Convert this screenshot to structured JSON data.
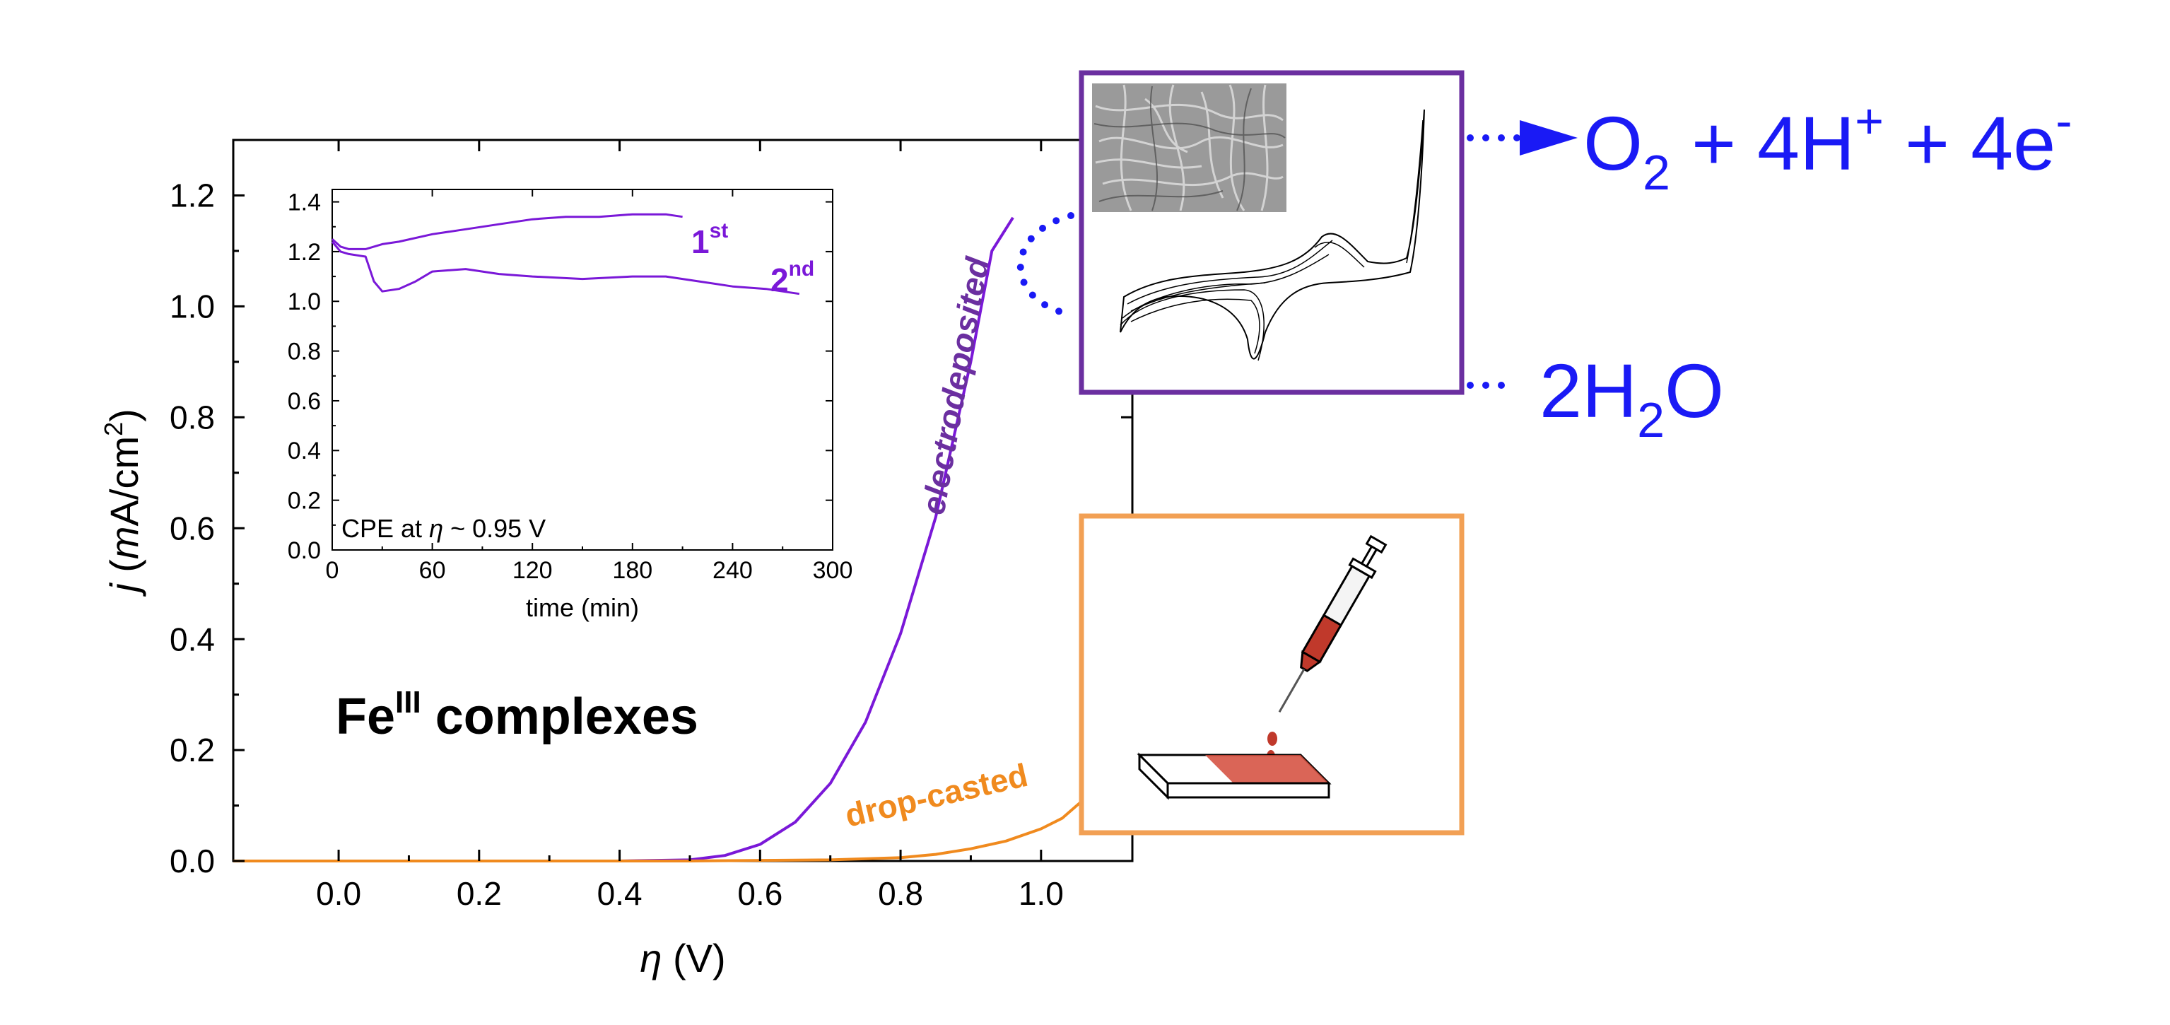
{
  "chart_data": [
    {
      "type": "line",
      "xlabel_symbol": "η",
      "xlabel_unit": " (V)",
      "ylabel_symbol": "j",
      "ylabel_unit_pre": " (",
      "ylabel_unit_m": "m",
      "ylabel_unit_rest": "A/cm",
      "ylabel_unit_sup": "2",
      "ylabel_unit_post": ")",
      "xlim": [
        -0.15,
        1.13
      ],
      "ylim": [
        0.0,
        1.3
      ],
      "xticks": [
        0.0,
        0.2,
        0.4,
        0.6,
        0.8,
        1.0
      ],
      "xtick_labels": [
        "0.0",
        "0.2",
        "0.4",
        "0.6",
        "0.8",
        "1.0"
      ],
      "yticks": [
        0.0,
        0.2,
        0.4,
        0.6,
        0.8,
        1.0,
        1.2
      ],
      "ytick_labels": [
        "0.0",
        "0.2",
        "0.4",
        "0.6",
        "0.8",
        "1.0",
        "1.2"
      ],
      "series": [
        {
          "name": "electrodeposited",
          "color": "#7a18d8",
          "x": [
            -0.15,
            0.4,
            0.5,
            0.55,
            0.6,
            0.65,
            0.7,
            0.75,
            0.8,
            0.85,
            0.9,
            0.93,
            0.96
          ],
          "y": [
            0.0,
            0.0,
            0.002,
            0.01,
            0.03,
            0.07,
            0.14,
            0.25,
            0.41,
            0.62,
            0.9,
            1.1,
            1.16
          ]
        },
        {
          "name": "drop-casted",
          "color": "#f08a1e",
          "x": [
            -0.15,
            0.5,
            0.7,
            0.8,
            0.85,
            0.9,
            0.95,
            1.0,
            1.03,
            1.06
          ],
          "y": [
            0.0,
            0.0,
            0.002,
            0.006,
            0.012,
            0.022,
            0.036,
            0.058,
            0.077,
            0.11
          ]
        }
      ],
      "annotation_main": "Fe",
      "annotation_sup": "III",
      "annotation_rest": " complexes"
    },
    {
      "type": "line",
      "inset": true,
      "xlabel": "time (min)",
      "xlim": [
        0,
        300
      ],
      "ylim": [
        0.0,
        1.45
      ],
      "xticks": [
        0,
        60,
        120,
        180,
        240,
        300
      ],
      "xtick_labels": [
        "0",
        "60",
        "120",
        "180",
        "240",
        "300"
      ],
      "yticks": [
        0.0,
        0.2,
        0.4,
        0.6,
        0.8,
        1.0,
        1.2,
        1.4
      ],
      "ytick_labels": [
        "0.0",
        "0.2",
        "0.4",
        "0.6",
        "0.8",
        "1.0",
        "1.2",
        "1.4"
      ],
      "annotation_pre": "CPE at ",
      "annotation_symbol": "η",
      "annotation_post": " ~ 0.95 V",
      "series": [
        {
          "label_main": "1",
          "label_sup": "st",
          "color": "#7a18d8",
          "x": [
            0,
            5,
            10,
            20,
            30,
            40,
            60,
            80,
            100,
            120,
            140,
            160,
            180,
            200,
            210
          ],
          "y": [
            1.25,
            1.22,
            1.21,
            1.21,
            1.23,
            1.24,
            1.27,
            1.29,
            1.31,
            1.33,
            1.34,
            1.34,
            1.35,
            1.35,
            1.34
          ]
        },
        {
          "label_main": "2",
          "label_sup": "nd",
          "color": "#7a18d8",
          "x": [
            0,
            5,
            10,
            20,
            25,
            30,
            40,
            50,
            60,
            80,
            100,
            120,
            150,
            180,
            200,
            220,
            240,
            260,
            280
          ],
          "y": [
            1.24,
            1.2,
            1.19,
            1.18,
            1.08,
            1.04,
            1.05,
            1.08,
            1.12,
            1.13,
            1.11,
            1.1,
            1.09,
            1.1,
            1.1,
            1.08,
            1.06,
            1.05,
            1.03
          ]
        }
      ]
    }
  ],
  "reaction": {
    "o2": "O",
    "o2_sub": "2",
    "plus1": " + 4H",
    "h_sup": "+",
    "plus2": " + 4e",
    "e_sup": "-",
    "water_pre": "2H",
    "water_sub": "2",
    "water_post": "O"
  },
  "colors": {
    "accent_blue": "#1a1af5",
    "purple_frame": "#6b2fa0",
    "orange_frame": "#f2a054"
  }
}
